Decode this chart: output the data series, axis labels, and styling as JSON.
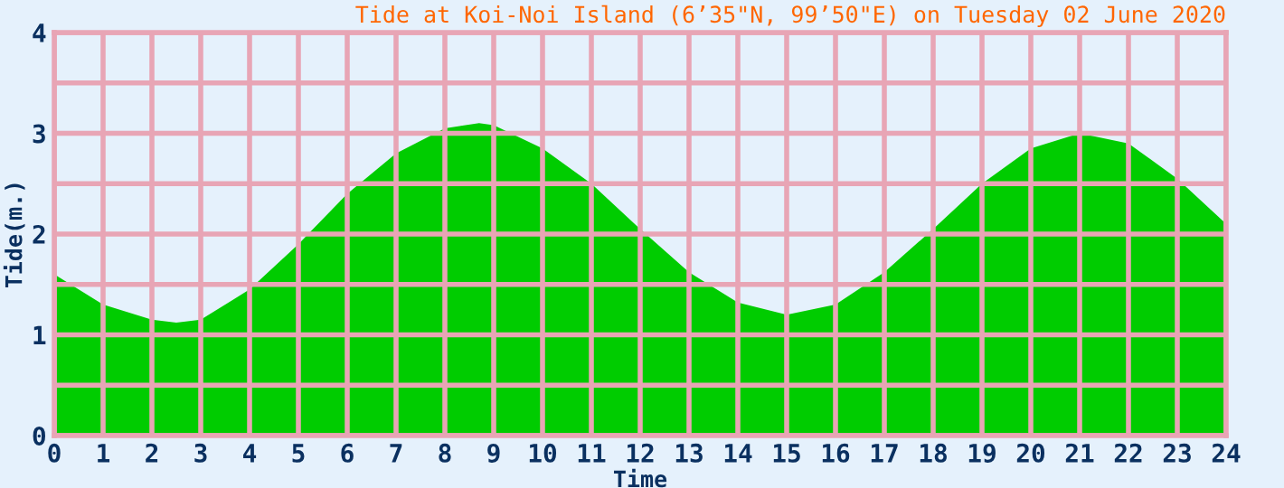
{
  "chart_data": {
    "type": "area",
    "title": "Tide at Koi-Noi Island (6’35\"N, 99’50\"E) on Tuesday 02 June 2020",
    "xlabel": "Time",
    "ylabel": "Tide(m.)",
    "x": [
      0,
      1,
      2,
      2.5,
      3,
      4,
      5,
      6,
      7,
      8,
      8.7,
      9,
      10,
      11,
      12,
      13,
      14,
      15,
      16,
      17,
      18,
      19,
      20,
      21,
      22,
      23,
      24
    ],
    "series": [
      {
        "color": "#00cc00",
        "values": [
          1.6,
          1.3,
          1.15,
          1.12,
          1.15,
          1.45,
          1.9,
          2.4,
          2.8,
          3.05,
          3.1,
          3.08,
          2.85,
          2.5,
          2.05,
          1.62,
          1.32,
          1.2,
          1.3,
          1.62,
          2.05,
          2.5,
          2.85,
          3.0,
          2.9,
          2.55,
          2.1
        ]
      }
    ],
    "xlim": [
      0,
      24
    ],
    "xticks": [
      0,
      1,
      2,
      3,
      4,
      5,
      6,
      7,
      8,
      9,
      10,
      11,
      12,
      13,
      14,
      15,
      16,
      17,
      18,
      19,
      20,
      21,
      22,
      23,
      24
    ],
    "ylim": [
      0,
      4
    ],
    "yticks": [
      0,
      {
        "value": 0.5,
        "label": null
      },
      1,
      {
        "value": 1.5,
        "label": null
      },
      2,
      {
        "value": 2.5,
        "label": null
      },
      3,
      {
        "value": 3.5,
        "label": null
      },
      4
    ],
    "grid": true,
    "legend": false
  }
}
